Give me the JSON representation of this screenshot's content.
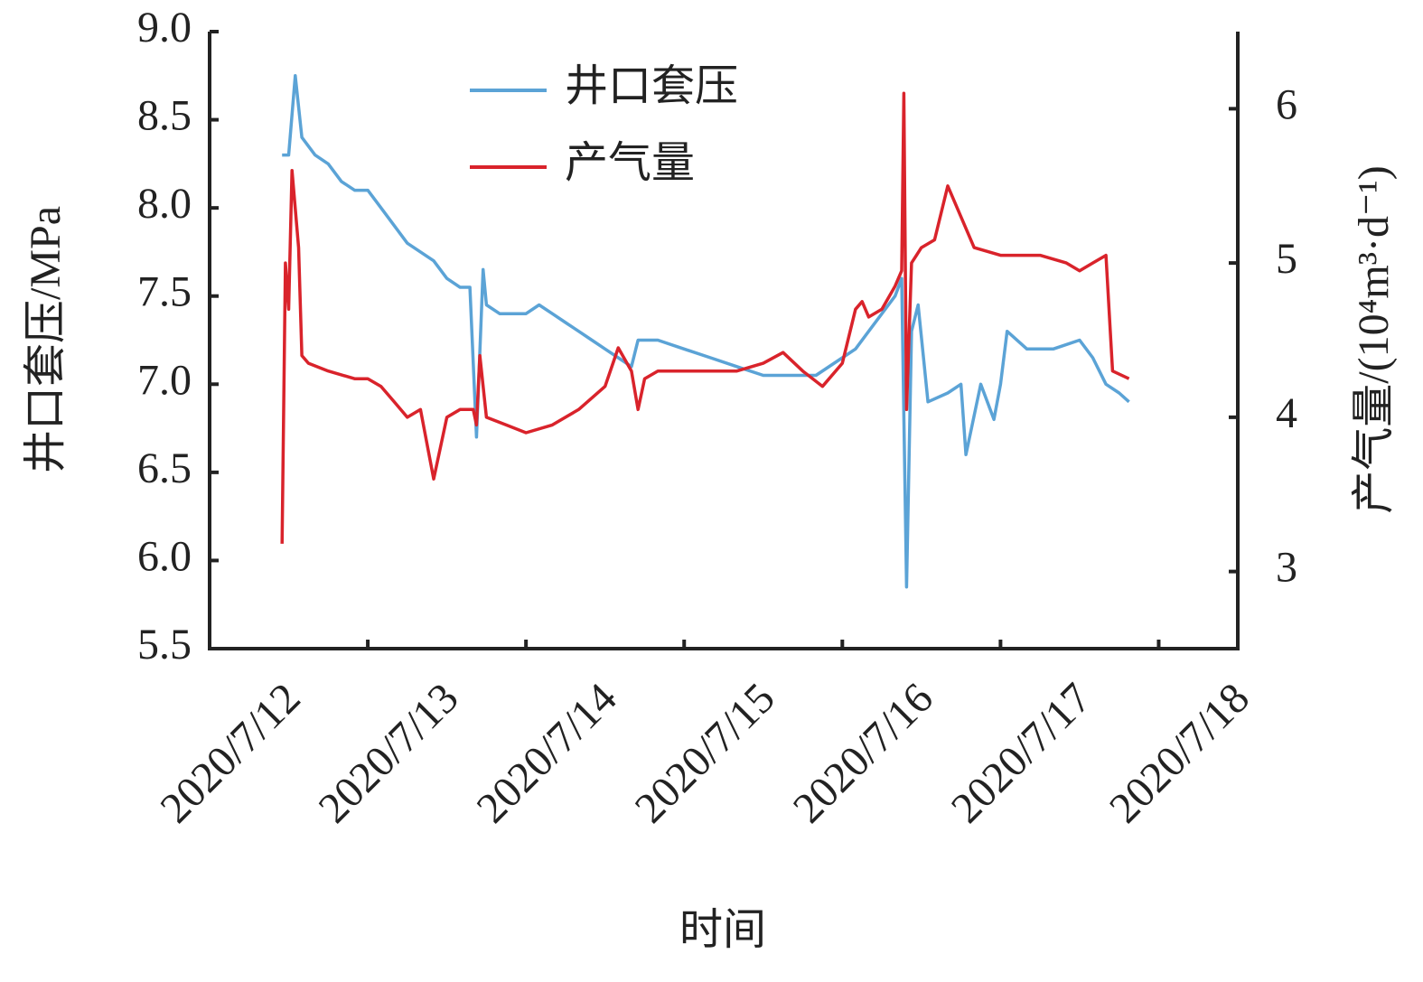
{
  "chart_data": {
    "type": "line",
    "xlabel": "时间",
    "ylabel": "井口套压/MPa",
    "y2label": "产气量/(10⁴m³·d⁻¹)",
    "xlim": [
      "2020-07-12T00:00",
      "2020-07-18T12:00"
    ],
    "xticks": [
      {
        "value": "2020-07-12T00:00",
        "label": "2020/7/12"
      },
      {
        "value": "2020-07-13T00:00",
        "label": "2020/7/13"
      },
      {
        "value": "2020-07-14T00:00",
        "label": "2020/7/14"
      },
      {
        "value": "2020-07-15T00:00",
        "label": "2020/7/15"
      },
      {
        "value": "2020-07-16T00:00",
        "label": "2020/7/16"
      },
      {
        "value": "2020-07-17T00:00",
        "label": "2020/7/17"
      },
      {
        "value": "2020-07-18T00:00",
        "label": "2020/7/18"
      }
    ],
    "ylim": [
      5.5,
      9
    ],
    "yticks": [
      5.5,
      {
        "value": 6,
        "label": "6.0"
      },
      6.5,
      {
        "value": 7,
        "label": "7.0"
      },
      7.5,
      {
        "value": 8,
        "label": "8.0"
      },
      8.5,
      {
        "value": 9,
        "label": "9.0"
      }
    ],
    "y2lim": [
      2.5,
      6.5
    ],
    "y2ticks": [
      3,
      4,
      5,
      6
    ],
    "legend": "upper center",
    "series": [
      {
        "name": "井口套压",
        "color": "#5ba3d6",
        "x": [
          "2020-07-12T11:00",
          "2020-07-12T12:00",
          "2020-07-12T13:00",
          "2020-07-12T14:00",
          "2020-07-12T16:00",
          "2020-07-12T18:00",
          "2020-07-12T20:00",
          "2020-07-12T22:00",
          "2020-07-13T00:00",
          "2020-07-13T02:00",
          "2020-07-13T04:00",
          "2020-07-13T06:00",
          "2020-07-13T08:00",
          "2020-07-13T10:00",
          "2020-07-13T12:00",
          "2020-07-13T14:00",
          "2020-07-13T15:30",
          "2020-07-13T16:30",
          "2020-07-13T17:30",
          "2020-07-13T18:00",
          "2020-07-13T20:00",
          "2020-07-13T22:00",
          "2020-07-14T00:00",
          "2020-07-14T02:00",
          "2020-07-14T04:00",
          "2020-07-14T06:00",
          "2020-07-14T08:00",
          "2020-07-14T10:00",
          "2020-07-14T12:00",
          "2020-07-14T14:00",
          "2020-07-14T16:00",
          "2020-07-14T17:00",
          "2020-07-14T20:00",
          "2020-07-15T00:00",
          "2020-07-15T04:00",
          "2020-07-15T08:00",
          "2020-07-15T12:00",
          "2020-07-15T16:00",
          "2020-07-15T20:00",
          "2020-07-16T00:00",
          "2020-07-16T02:00",
          "2020-07-16T04:00",
          "2020-07-16T06:00",
          "2020-07-16T08:00",
          "2020-07-16T09:00",
          "2020-07-16T09:45",
          "2020-07-16T10:30",
          "2020-07-16T11:30",
          "2020-07-16T13:00",
          "2020-07-16T16:00",
          "2020-07-16T18:00",
          "2020-07-16T18:45",
          "2020-07-16T21:00",
          "2020-07-16T23:00",
          "2020-07-17T00:00",
          "2020-07-17T01:00",
          "2020-07-17T04:00",
          "2020-07-17T08:00",
          "2020-07-17T12:00",
          "2020-07-17T14:00",
          "2020-07-17T16:00",
          "2020-07-17T18:00",
          "2020-07-17T19:30"
        ],
        "values": [
          8.3,
          8.3,
          8.75,
          8.4,
          8.3,
          8.25,
          8.15,
          8.1,
          8.1,
          8.0,
          7.9,
          7.8,
          7.75,
          7.7,
          7.6,
          7.55,
          7.55,
          6.7,
          7.65,
          7.45,
          7.4,
          7.4,
          7.4,
          7.45,
          7.4,
          7.35,
          7.3,
          7.25,
          7.2,
          7.15,
          7.1,
          7.25,
          7.25,
          7.2,
          7.15,
          7.1,
          7.05,
          7.05,
          7.05,
          7.15,
          7.2,
          7.3,
          7.4,
          7.5,
          7.6,
          5.85,
          7.3,
          7.45,
          6.9,
          6.95,
          7.0,
          6.6,
          7.0,
          6.8,
          7.0,
          7.3,
          7.2,
          7.2,
          7.25,
          7.15,
          7.0,
          6.95,
          6.9
        ]
      },
      {
        "name": "产气量",
        "color": "#d9232b",
        "axis": "y2",
        "x": [
          "2020-07-12T11:00",
          "2020-07-12T11:30",
          "2020-07-12T12:00",
          "2020-07-12T12:30",
          "2020-07-12T13:30",
          "2020-07-12T14:00",
          "2020-07-12T15:00",
          "2020-07-12T18:00",
          "2020-07-12T22:00",
          "2020-07-13T00:00",
          "2020-07-13T02:00",
          "2020-07-13T04:00",
          "2020-07-13T06:00",
          "2020-07-13T08:00",
          "2020-07-13T10:00",
          "2020-07-13T12:00",
          "2020-07-13T14:00",
          "2020-07-13T16:00",
          "2020-07-13T16:30",
          "2020-07-13T17:00",
          "2020-07-13T18:00",
          "2020-07-13T21:00",
          "2020-07-14T00:00",
          "2020-07-14T04:00",
          "2020-07-14T08:00",
          "2020-07-14T12:00",
          "2020-07-14T14:00",
          "2020-07-14T16:00",
          "2020-07-14T17:00",
          "2020-07-14T18:00",
          "2020-07-14T20:00",
          "2020-07-15T00:00",
          "2020-07-15T08:00",
          "2020-07-15T12:00",
          "2020-07-15T15:00",
          "2020-07-15T18:00",
          "2020-07-15T21:00",
          "2020-07-16T00:00",
          "2020-07-16T02:00",
          "2020-07-16T03:00",
          "2020-07-16T04:00",
          "2020-07-16T06:00",
          "2020-07-16T08:00",
          "2020-07-16T09:00",
          "2020-07-16T09:20",
          "2020-07-16T09:45",
          "2020-07-16T10:30",
          "2020-07-16T12:00",
          "2020-07-16T14:00",
          "2020-07-16T16:00",
          "2020-07-16T18:00",
          "2020-07-16T20:00",
          "2020-07-17T00:00",
          "2020-07-17T06:00",
          "2020-07-17T10:00",
          "2020-07-17T12:00",
          "2020-07-17T14:00",
          "2020-07-17T16:00",
          "2020-07-17T17:00",
          "2020-07-17T19:30"
        ],
        "values": [
          3.18,
          5.0,
          4.7,
          5.6,
          5.1,
          4.4,
          4.35,
          4.3,
          4.25,
          4.25,
          4.2,
          4.1,
          4.0,
          4.05,
          3.6,
          4.0,
          4.05,
          4.05,
          3.95,
          4.4,
          4.0,
          3.95,
          3.9,
          3.95,
          4.05,
          4.2,
          4.45,
          4.3,
          4.05,
          4.25,
          4.3,
          4.3,
          4.3,
          4.35,
          4.42,
          4.3,
          4.2,
          4.35,
          4.7,
          4.75,
          4.65,
          4.7,
          4.85,
          4.95,
          6.1,
          4.05,
          5.0,
          5.1,
          5.15,
          5.5,
          5.3,
          5.1,
          5.05,
          5.05,
          5.0,
          4.95,
          5.0,
          5.05,
          4.3,
          4.25
        ]
      }
    ]
  }
}
